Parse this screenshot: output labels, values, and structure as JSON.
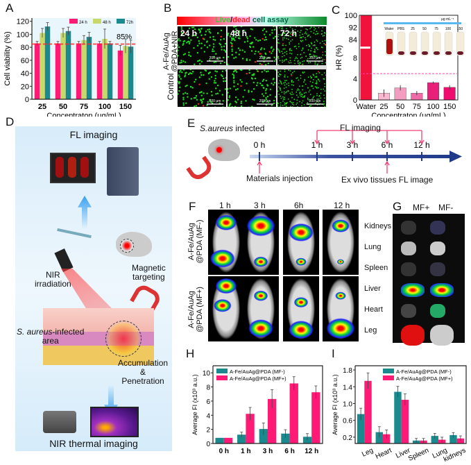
{
  "panels": {
    "A": "A",
    "B": "B",
    "C": "C",
    "D": "D",
    "E": "E",
    "F": "F",
    "G": "G",
    "H": "H",
    "I": "I"
  },
  "colors": {
    "pink": "#ff1a75",
    "olive": "#c8d96a",
    "teal": "#1a8a8f",
    "threshold": "#ff2a2a"
  },
  "chart_data": [
    {
      "id": "A",
      "type": "bar",
      "categories": [
        "25",
        "50",
        "75",
        "100",
        "150"
      ],
      "series": [
        {
          "name": "24 h",
          "values": [
            86,
            86,
            86,
            86,
            75
          ],
          "errors": [
            3,
            3,
            3,
            3,
            8
          ],
          "color": "#ff1a75"
        },
        {
          "name": "48 h",
          "values": [
            102,
            102,
            91,
            93,
            82
          ],
          "errors": [
            7,
            7,
            7,
            15,
            11
          ],
          "color": "#c8d96a"
        },
        {
          "name": "72h",
          "values": [
            112,
            105,
            96,
            86,
            81
          ],
          "errors": [
            6,
            6,
            7,
            3,
            10
          ],
          "color": "#1a8a8f"
        }
      ],
      "xlabel": "Concentraton (μg/mL)",
      "ylabel": "Cell viability (%)",
      "ylim": [
        0,
        125
      ],
      "yticks": [
        0,
        20,
        40,
        60,
        80,
        100,
        120
      ],
      "threshold": {
        "value": 85,
        "label": "85%"
      },
      "legend": "top-right",
      "grid": false
    },
    {
      "id": "C",
      "type": "bar",
      "categories": [
        "Water",
        "25",
        "50",
        "75",
        "100",
        "150"
      ],
      "values": [
        100,
        1.3,
        2.3,
        1.3,
        3.3,
        2.4
      ],
      "errors": [
        0,
        0.7,
        0.5,
        0.4,
        0.2,
        0.4
      ],
      "colors": [
        "#f0143c",
        "#f7b8d0",
        "#f29cc0",
        "#f06aa8",
        "#e8207a",
        "#f00b6e"
      ],
      "xlabel": "Concentraton (μg/mL)",
      "ylabel": "HR (%)",
      "yticks_lower": [
        0,
        4,
        8
      ],
      "yticks_upper": [
        84,
        92,
        100
      ],
      "axis_break": true,
      "threshold": {
        "value": 5
      },
      "inset_labels": [
        "Water",
        "PBS",
        "25",
        "50",
        "75",
        "100",
        "150"
      ],
      "inset_unit": "μg mL⁻¹"
    },
    {
      "id": "H",
      "type": "bar",
      "categories": [
        "0 h",
        "1 h",
        "3 h",
        "6 h",
        "12 h"
      ],
      "series": [
        {
          "name": "A-Fe/AuAg@PDA (MF-)",
          "values": [
            0.8,
            1.25,
            2.05,
            1.4,
            0.95
          ],
          "errors": [
            0,
            0.35,
            0.85,
            0.55,
            0.45
          ],
          "color": "#1a8a8f"
        },
        {
          "name": "A-Fe/AuAg@PDA (MF+)",
          "values": [
            0.8,
            4.2,
            6.3,
            8.5,
            7.25
          ],
          "errors": [
            0,
            0.9,
            1.3,
            0.95,
            0.9
          ],
          "color": "#ff1a75"
        }
      ],
      "ylabel": "Average FI  (x10³ a.u.)",
      "ylim": [
        0,
        11
      ],
      "yticks": [
        0,
        2,
        4,
        6,
        8,
        10
      ],
      "legend": "top-left"
    },
    {
      "id": "I",
      "type": "bar",
      "categories": [
        "Leg",
        "Heart",
        "Liver",
        "Spleen",
        "Lung",
        "kidneys"
      ],
      "series": [
        {
          "name": "A-Fe/AuAg@PDA (MF-)",
          "values": [
            0.75,
            0.32,
            1.28,
            0.12,
            0.23,
            0.25
          ],
          "errors": [
            0.14,
            0.13,
            0.13,
            0.05,
            0.06,
            0.06
          ],
          "color": "#1a8a8f"
        },
        {
          "name": "A-Fe/AuAg@PDA (MF+)",
          "values": [
            1.54,
            0.27,
            1.09,
            0.12,
            0.14,
            0.17
          ],
          "errors": [
            0.19,
            0.1,
            0.14,
            0.05,
            0.06,
            0.06
          ],
          "color": "#ff1a75"
        }
      ],
      "ylabel": "Average FI  (x10³ a.u.)",
      "ylim": [
        0.05,
        1.9
      ],
      "yticks": [
        0.2,
        0.6,
        1.0,
        1.4,
        1.8
      ],
      "legend": "top-right"
    }
  ],
  "B": {
    "title_live": "Live",
    "title_sep": "/",
    "title_dead": "dead",
    "title_rest": " cell assay",
    "times": [
      "24 h",
      "48 h",
      "72 h"
    ],
    "row1": "A-Fe/AuAg\n@PDA+NIR",
    "row1a": "A-Fe/AuAg",
    "row1b": "@PDA+NIR",
    "row2": "Control",
    "scale": "200 μm"
  },
  "D": {
    "fl": "FL imaging",
    "nir_irr1": "NIR",
    "nir_irr2": "irradiation",
    "mag1": "Magnetic",
    "mag2": "targeting",
    "infected_italic": "S. aureus",
    "infected_rest": "-infected",
    "area": "area",
    "acc1": "Accumulation",
    "acc2": "&",
    "acc3": "Penetration",
    "thermal": "NIR thermal imaging"
  },
  "E": {
    "mouse_italic": "S.aureus",
    "mouse_rest": " infected",
    "fl": "FL imaging",
    "times": [
      "0 h",
      "1 h",
      "3 h",
      "6 h",
      "12 h"
    ],
    "inj": "Materials injection",
    "exvivo": "Ex vivo tissues FL image"
  },
  "F": {
    "times": [
      "1 h",
      "3 h",
      "6h",
      "12 h"
    ],
    "row1a": "A-Fe/AuAg",
    "row1b": "@PDA (MF-)",
    "row2a": "A-Fe/AuAg",
    "row2b": "@PDA (MF+)"
  },
  "G": {
    "cols": [
      "MF+",
      "MF-"
    ],
    "organs": [
      "Kidneys",
      "Lung",
      "Spleen",
      "Liver",
      "Heart",
      "Leg"
    ]
  }
}
